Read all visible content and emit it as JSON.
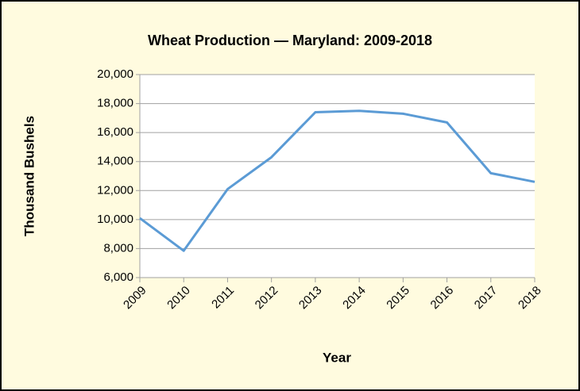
{
  "chart_data": {
    "type": "line",
    "title": "Wheat Production — Maryland: 2009-2018",
    "x_label": "Year",
    "y_label": "Thousand Bushels",
    "categories": [
      "2009",
      "2010",
      "2011",
      "2012",
      "2013",
      "2014",
      "2015",
      "2016",
      "2017",
      "2018"
    ],
    "series": [
      {
        "name": "Wheat Production",
        "color": "#5b9bd5",
        "values": [
          10100,
          7850,
          12100,
          14300,
          17400,
          17500,
          17300,
          16700,
          13200,
          12600
        ]
      }
    ],
    "ylim": [
      6000,
      20000
    ],
    "yticks": [
      {
        "value": 6000,
        "label": "6,000"
      },
      {
        "value": 8000,
        "label": "8,000"
      },
      {
        "value": 10000,
        "label": "10,000"
      },
      {
        "value": 12000,
        "label": "12,000"
      },
      {
        "value": 14000,
        "label": "14,000"
      },
      {
        "value": 16000,
        "label": "16,000"
      },
      {
        "value": 18000,
        "label": "18,000"
      },
      {
        "value": 20000,
        "label": "20,000"
      }
    ],
    "grid": true,
    "legend": false
  }
}
